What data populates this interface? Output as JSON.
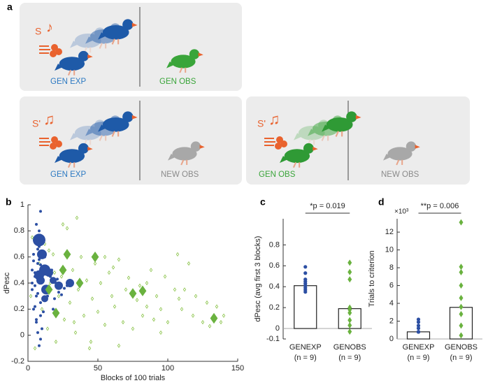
{
  "illustration": {
    "panel_label": "a",
    "boxes": [
      {
        "stimulus": "S",
        "left_label": "GEN EXP",
        "right_label": "GEN OBS"
      },
      {
        "stimulus": "S'",
        "left_label": "GEN EXP",
        "right_label": "NEW OBS"
      },
      {
        "stimulus": "S'",
        "left_label": "GEN OBS",
        "right_label": "NEW OBS"
      }
    ]
  },
  "chart_data": [
    {
      "type": "scatter",
      "panel_label": "b",
      "xlabel": "Blocks of 100 trials",
      "ylabel": "dPesc",
      "xlim": [
        0,
        150
      ],
      "xticks": [
        0,
        50,
        100,
        150
      ],
      "ylim": [
        -0.2,
        1
      ],
      "yticks": [
        -0.2,
        0,
        0.2,
        0.4,
        0.6,
        0.8,
        1
      ],
      "series": [
        {
          "color": "#8bc34a",
          "marker": "open-diamond",
          "x": [
            2,
            5,
            8,
            10,
            12,
            14,
            16,
            18,
            20,
            22,
            24,
            26,
            28,
            30,
            32,
            34,
            36,
            38,
            40,
            42,
            44,
            46,
            48,
            50,
            52,
            55,
            58,
            60,
            62,
            65,
            68,
            70,
            72,
            75,
            78,
            80,
            82,
            85,
            88,
            90,
            92,
            95,
            98,
            100,
            105,
            108,
            110,
            115,
            118,
            120,
            125,
            128,
            130,
            135,
            138,
            140,
            15,
            25,
            35,
            45,
            55,
            65,
            85,
            95,
            107,
            112,
            3,
            19,
            33,
            61
          ],
          "values": [
            0.3,
            -0.1,
            0.55,
            0.2,
            0.7,
            0.05,
            0.4,
            0.62,
            -0.05,
            0.3,
            0.45,
            0.12,
            0.82,
            0.25,
            0.5,
            0.02,
            0.35,
            0.6,
            0.15,
            0.42,
            -0.1,
            0.28,
            0.55,
            0.18,
            0.4,
            0.08,
            0.48,
            0.3,
            0.22,
            0.58,
            0.1,
            0.35,
            0.44,
            0.05,
            0.27,
            0.38,
            0.15,
            0.22,
            0.5,
            0.12,
            0.3,
            0.2,
            0.45,
            0.1,
            0.35,
            0.28,
            0.2,
            0.55,
            0.15,
            0.3,
            0.1,
            0.25,
            0.07,
            0.22,
            0.1,
            0.15,
            0.65,
            0.85,
            0.9,
            -0.05,
            0.6,
            -0.08,
            0.4,
            0.02,
            0.62,
            0.35,
            0.75,
            0.48,
            0.1,
            0.52
          ]
        },
        {
          "color": "#2c4fa3",
          "marker": "dot",
          "x": [
            3,
            4,
            5,
            6,
            7,
            8,
            9,
            10,
            4,
            5,
            6,
            7,
            8,
            9,
            11,
            12,
            3,
            5,
            7,
            9,
            13,
            14,
            16,
            18,
            20,
            22,
            6,
            8,
            10,
            12,
            5,
            7,
            9,
            11,
            4,
            6,
            15,
            17,
            19,
            21,
            24,
            26,
            8,
            10,
            3,
            5,
            28,
            7,
            9,
            11
          ],
          "values": [
            0.5,
            0.62,
            0.45,
            0.3,
            0.55,
            0.8,
            0.95,
            0.7,
            0.2,
            0.38,
            0.1,
            0.02,
            -0.08,
            0.15,
            0.42,
            0.6,
            0.35,
            0.48,
            0.66,
            0.25,
            0.52,
            0.3,
            0.45,
            0.2,
            0.4,
            0.33,
            0.85,
            0.58,
            0.05,
            0.27,
            0.72,
            0.44,
            -0.03,
            0.18,
            0.57,
            0.12,
            0.37,
            0.5,
            0.28,
            0.43,
            0.31,
            0.36,
            0.68,
            0.49,
            0.4,
            0.22,
            0.38,
            0.32,
            0.54,
            0.6
          ]
        },
        {
          "color": "#2c4fa3",
          "marker": "circle",
          "x": [
            8,
            10,
            12,
            8,
            15,
            13,
            9,
            18,
            22,
            30,
            12
          ],
          "values": [
            0.73,
            0.62,
            0.5,
            0.46,
            0.48,
            0.35,
            0.42,
            0.42,
            0.38,
            0.4,
            0.28
          ],
          "sizes": [
            9,
            7,
            8,
            7,
            6,
            7,
            6,
            5,
            6,
            6,
            5
          ]
        },
        {
          "color": "#6ab23f",
          "marker": "diamond",
          "x": [
            28,
            48,
            37,
            15,
            20,
            75,
            82,
            133,
            25
          ],
          "values": [
            0.62,
            0.6,
            0.4,
            0.35,
            0.17,
            0.32,
            0.34,
            0.13,
            0.5
          ]
        }
      ]
    },
    {
      "type": "bar",
      "panel_label": "c",
      "ylabel": "dPesc (avg first 3 blocks)",
      "ylim": [
        -0.1,
        1.05
      ],
      "yticks": [
        -0.1,
        0,
        0.2,
        0.4,
        0.6,
        0.8
      ],
      "categories": [
        "GENEXP",
        "GENOBS"
      ],
      "sublabels": [
        "(n = 9)",
        "(n = 9)"
      ],
      "values": [
        0.41,
        0.19
      ],
      "colors": [
        "#2c4fa3",
        "#6ab23f"
      ],
      "points": [
        [
          0.59,
          0.53,
          0.47,
          0.45,
          0.43,
          0.41,
          0.39,
          0.37,
          0.35
        ],
        [
          0.63,
          0.54,
          0.47,
          0.2,
          0.18,
          0.15,
          0.08,
          0.03,
          -0.03
        ]
      ],
      "annotation": "*p = 0.019"
    },
    {
      "type": "bar",
      "panel_label": "d",
      "ylabel": "Trials to criterion",
      "y_multiplier": "×10³",
      "ylim": [
        0,
        13.5
      ],
      "yticks": [
        0,
        2,
        4,
        6,
        8,
        10,
        12
      ],
      "categories": [
        "GENEXP",
        "GENOBS"
      ],
      "sublabels": [
        "(n = 9)",
        "(n = 9)"
      ],
      "values": [
        0.8,
        3.55
      ],
      "colors": [
        "#2c4fa3",
        "#6ab23f"
      ],
      "points": [
        [
          2.2,
          1.9,
          1.5,
          1.2,
          0.8,
          0.8,
          0.8,
          0.8,
          0.8
        ],
        [
          13.1,
          8.1,
          7.5,
          6.0,
          4.6,
          3.6,
          2.8,
          1.5,
          0.4
        ]
      ],
      "annotation": "**p = 0.006"
    }
  ]
}
